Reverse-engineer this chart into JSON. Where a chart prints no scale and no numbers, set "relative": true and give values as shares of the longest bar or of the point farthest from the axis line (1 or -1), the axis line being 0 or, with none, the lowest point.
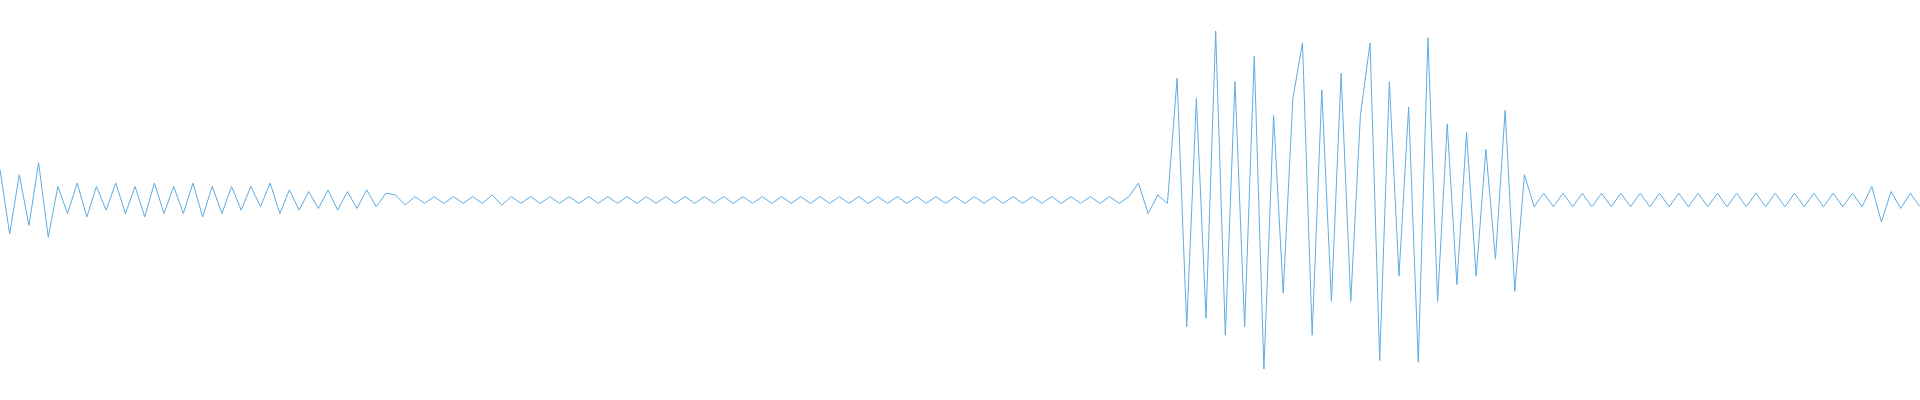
{
  "chart_data": {
    "type": "line",
    "relative": true,
    "marker": "none",
    "line_style": "solid",
    "categories": [
      null,
      null,
      null,
      null,
      null,
      null,
      null,
      null,
      null,
      null,
      null,
      null,
      null,
      null,
      null,
      null,
      null,
      null,
      null,
      null,
      null,
      null,
      null,
      null,
      null,
      null,
      null,
      null,
      null,
      null,
      null,
      null,
      null,
      null,
      null,
      null,
      null,
      null,
      null,
      null,
      null,
      null,
      null,
      null,
      null,
      null,
      null,
      null,
      null,
      null,
      null,
      null,
      null,
      null,
      null,
      null,
      null,
      null,
      null,
      null,
      null,
      null,
      null,
      null,
      null,
      null,
      null,
      null,
      null,
      null,
      null,
      null,
      null,
      null,
      null,
      null,
      null,
      null,
      null,
      null,
      null,
      null,
      null,
      null,
      null,
      null,
      null,
      null,
      null,
      null,
      null,
      null,
      null,
      null,
      null,
      null,
      null,
      null,
      null,
      null,
      null,
      null,
      null,
      null,
      null,
      null,
      null,
      null,
      null,
      null,
      null,
      null,
      null,
      null,
      null,
      null,
      null,
      null,
      null,
      null,
      null,
      null,
      null,
      null,
      null,
      null,
      null,
      null,
      null,
      null,
      null,
      null,
      null,
      null,
      null,
      null,
      null,
      null,
      null,
      null,
      null,
      null,
      null,
      null,
      null,
      null,
      null,
      null,
      null,
      null,
      null,
      null,
      null,
      null,
      null,
      null,
      null,
      null,
      null,
      null,
      null,
      null,
      null,
      null,
      null,
      null,
      null,
      null,
      null,
      null,
      null,
      null,
      null,
      null,
      null,
      null,
      null,
      null,
      null,
      null,
      null,
      null,
      null,
      null,
      null,
      null,
      null,
      null,
      null,
      null,
      null,
      null,
      null,
      null,
      null,
      null,
      null,
      null,
      null,
      null
    ],
    "series": [
      {
        "color": "#5dade2",
        "values": [
          0.59,
          0.4,
          0.575,
          0.425,
          0.61,
          0.39,
          0.54,
          0.46,
          0.55,
          0.45,
          0.54,
          0.47,
          0.55,
          0.46,
          0.54,
          0.45,
          0.55,
          0.46,
          0.54,
          0.46,
          0.55,
          0.45,
          0.54,
          0.46,
          0.54,
          0.47,
          0.54,
          0.48,
          0.55,
          0.46,
          0.53,
          0.47,
          0.525,
          0.475,
          0.53,
          0.47,
          0.525,
          0.475,
          0.53,
          0.48,
          0.52,
          0.515,
          0.485,
          0.51,
          0.49,
          0.51,
          0.49,
          0.51,
          0.49,
          0.51,
          0.49,
          0.515,
          0.485,
          0.51,
          0.49,
          0.51,
          0.49,
          0.51,
          0.49,
          0.51,
          0.49,
          0.51,
          0.49,
          0.51,
          0.49,
          0.51,
          0.49,
          0.51,
          0.49,
          0.51,
          0.49,
          0.51,
          0.49,
          0.51,
          0.49,
          0.51,
          0.49,
          0.51,
          0.49,
          0.51,
          0.49,
          0.51,
          0.49,
          0.51,
          0.49,
          0.51,
          0.49,
          0.51,
          0.49,
          0.51,
          0.49,
          0.51,
          0.49,
          0.51,
          0.49,
          0.51,
          0.49,
          0.51,
          0.49,
          0.51,
          0.49,
          0.51,
          0.49,
          0.51,
          0.49,
          0.51,
          0.49,
          0.51,
          0.49,
          0.51,
          0.49,
          0.51,
          0.49,
          0.51,
          0.49,
          0.51,
          0.49,
          0.51,
          0.55,
          0.46,
          0.515,
          0.49,
          0.86,
          0.125,
          0.8,
          0.15,
          1,
          0.1,
          0.85,
          0.125,
          0.925,
          0,
          0.75,
          0.225,
          0.8,
          0.965,
          0.1,
          0.825,
          0.2,
          0.875,
          0.2,
          0.75,
          0.965,
          0.025,
          0.85,
          0.275,
          0.775,
          0.02,
          0.98,
          0.2,
          0.725,
          0.25,
          0.7,
          0.275,
          0.65,
          0.325,
          0.765,
          0.23,
          0.575,
          0.48,
          0.52,
          0.48,
          0.52,
          0.48,
          0.52,
          0.48,
          0.52,
          0.48,
          0.52,
          0.48,
          0.52,
          0.48,
          0.52,
          0.48,
          0.52,
          0.48,
          0.52,
          0.48,
          0.52,
          0.48,
          0.52,
          0.48,
          0.52,
          0.48,
          0.52,
          0.48,
          0.52,
          0.48,
          0.52,
          0.48,
          0.52,
          0.48,
          0.52,
          0.48,
          0.54,
          0.435,
          0.525,
          0.475,
          0.52,
          0.48
        ]
      }
    ]
  }
}
